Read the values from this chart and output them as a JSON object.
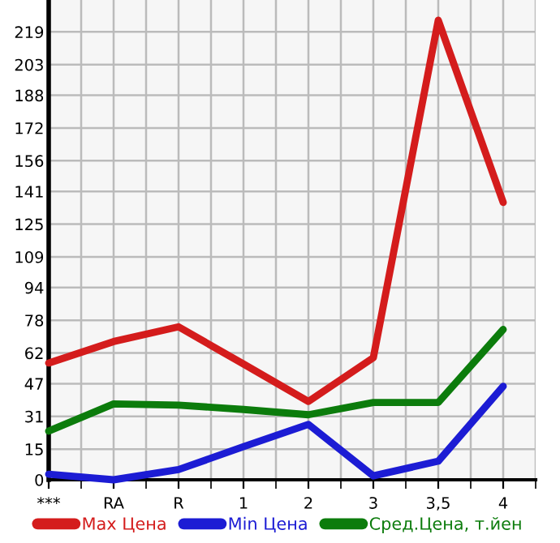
{
  "chart_data": {
    "type": "line",
    "categories": [
      "***",
      "RA",
      "R",
      "1",
      "2",
      "3",
      "3,5",
      "4"
    ],
    "series": [
      {
        "name": "Max Цена",
        "color": "#d41c1c",
        "values": [
          57.1,
          67.6,
          74.8,
          56.6,
          38.3,
          59.7,
          224.7,
          135.6
        ]
      },
      {
        "name": "Min Цена",
        "color": "#1c1cd4",
        "values": [
          2.7,
          0,
          5.0,
          16.2,
          27.1,
          1.9,
          9.1,
          45.7
        ]
      },
      {
        "name": "Сред.Цена, т.йен",
        "color": "#0c7c0c",
        "values": [
          23.8,
          37.1,
          36.5,
          34.4,
          31.8,
          37.8,
          37.8,
          73.5
        ]
      }
    ],
    "ylim": [
      0,
      234.6
    ],
    "yticks": [
      0,
      15,
      31,
      47,
      62,
      78,
      94,
      109,
      125,
      141,
      156,
      172,
      188,
      203,
      219
    ],
    "grid": true,
    "legend": "bottom",
    "marker": "none",
    "line_style": "solid"
  }
}
